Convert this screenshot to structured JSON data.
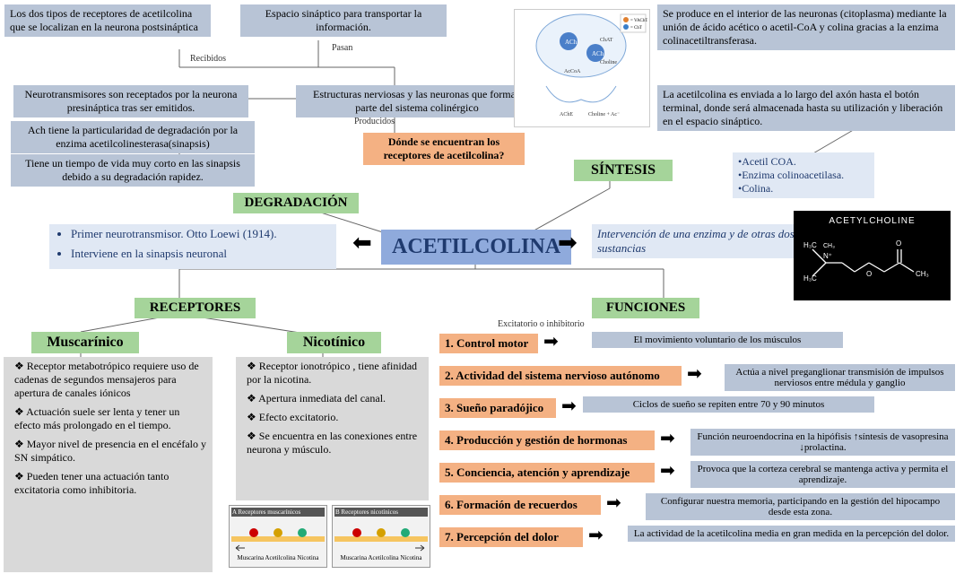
{
  "title": "ACETILCOLINA",
  "top_boxes": {
    "receptores_post": "Los dos tipos de receptores de acetilcolina que se localizan en la neurona postsináptica",
    "espacio_sinaptico": "Espacio sináptico para transportar la información.",
    "sintesis_desc": "Se produce en el interior de las neuronas (citoplasma) mediante la unión de ácido acético o acetil-CoA y colina gracias a la enzima colinacetiltransferasa.",
    "neurotrans_recep": "Neurotransmisores son receptados por la neurona presináptica tras ser emitidos.",
    "estructuras": "Estructuras nerviosas y las neuronas que forman parte del sistema colinérgico",
    "axon": "La acetilcolina es enviada a lo largo del axón hasta el botón terminal, donde será almacenada hasta su utilización y liberación en el espacio sináptico.",
    "ach_degrad": "Ach tiene la particularidad de degradación por la enzima acetilcolinesterasa(sinapsis)",
    "donde_recep": "Dónde se encuentran los receptores de acetilcolina?",
    "tiempo_vida": "Tiene un tiempo de vida muy corto en las sinapsis debido a su degradación rapidez."
  },
  "labels": {
    "recibidos": "Recibidos",
    "pasan": "Pasan",
    "producidos": "Producidos",
    "excit_inhib": "Excitatorio o inhibitorio"
  },
  "section_heads": {
    "degradacion": "DEGRADACIÓN",
    "sintesis": "SÍNTESIS",
    "receptores": "RECEPTORES",
    "funciones": "FUNCIONES",
    "muscarinico": "Muscarínico",
    "nicotinico": "Nicotínico"
  },
  "side_boxes": {
    "primer_neuro": [
      "Primer neurotransmisor. Otto Loewi (1914).",
      "Interviene en la sinapsis neuronal"
    ],
    "intervencion": "Intervención de una enzima y de otras dos sustancias",
    "ingredientes": [
      "Acetil COA.",
      "Enzima colinoacetilasa.",
      "Colina."
    ]
  },
  "muscarinico": [
    "Receptor metabotrópico requiere uso de cadenas de segundos mensajeros para apertura de canales iónicos",
    "Actuación suele ser lenta y tener un efecto más prolongado en el tiempo.",
    "Mayor nivel de presencia en el encéfalo y SN simpático.",
    "Pueden tener una actuación tanto excitatoria como inhibitoria."
  ],
  "nicotinico": [
    "Receptor ionotrópico , tiene afinidad por la nicotina.",
    "Apertura inmediata del canal.",
    "Efecto excitatorio.",
    "Se encuentra en las conexiones entre neurona y músculo."
  ],
  "funciones": [
    {
      "n": "1.",
      "t": "Control motor",
      "d": "El movimiento voluntario de los músculos"
    },
    {
      "n": "2.",
      "t": "Actividad del sistema nervioso autónomo",
      "d": "Actúa a nivel preganglionar transmisión de impulsos nerviosos entre médula y ganglio"
    },
    {
      "n": "3.",
      "t": "Sueño paradójico",
      "d": "Ciclos de sueño se repiten entre 70 y 90 minutos"
    },
    {
      "n": "4.",
      "t": "Producción y gestión de hormonas",
      "d": "Función neuroendocrina en la hipófisis ↑síntesis de vasopresina  ↓prolactina."
    },
    {
      "n": "5.",
      "t": "Conciencia, atención y aprendizaje",
      "d": "Provoca que la corteza cerebral se mantenga activa y permita el aprendizaje."
    },
    {
      "n": "6.",
      "t": "Formación de recuerdos",
      "d": "Configurar nuestra memoria, participando en la gestión del hipocampo desde esta zona."
    },
    {
      "n": "7.",
      "t": "Percepción del dolor",
      "d": "La actividad de la acetilcolina media en gran medida en la percepción del dolor."
    }
  ],
  "formula_label": "ACETYLCHOLINE",
  "rec_img_labels": {
    "a": "A  Receptores muscarínicos",
    "b": "B  Receptores nicotínicos",
    "sub": "Muscarina  Acetilcolina  Nicotina"
  },
  "colors": {
    "blue": "#b8c4d6",
    "lightblue": "#e0e8f4",
    "green": "#a5d49a",
    "orange": "#f4b183",
    "gray": "#d9d9d9",
    "title": "#8faadc"
  }
}
